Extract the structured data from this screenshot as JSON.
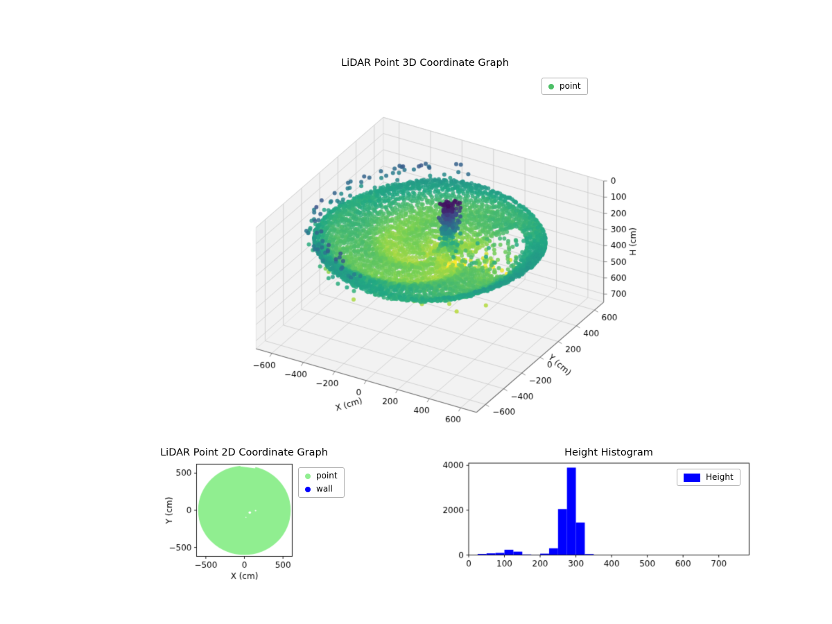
{
  "figure": {
    "background": "#ffffff",
    "colors": {
      "pane": "#f2f2f2",
      "pane_edge": "#dedede",
      "grid": "#c9c9c9",
      "axis_line": "#6f6f6f",
      "tick_text": "#000000",
      "spine": "#000000"
    },
    "viridis": [
      "#440154",
      "#414487",
      "#2a788e",
      "#22a884",
      "#7ad151",
      "#fde725"
    ]
  },
  "chart_data": [
    {
      "id": "lidar-3d",
      "type": "scatter3d",
      "title": "LiDAR Point 3D Coordinate Graph",
      "xlabel": "X (cm)",
      "ylabel": "Y (cm)",
      "zlabel": "H (cm)",
      "xlim": [
        -700,
        700
      ],
      "ylim": [
        -700,
        700
      ],
      "hlim": [
        0,
        750
      ],
      "h_axis_inverted": true,
      "x_ticks": [
        -600,
        -400,
        -200,
        0,
        200,
        400,
        600
      ],
      "y_ticks": [
        -600,
        -400,
        -200,
        0,
        200,
        400,
        600
      ],
      "h_ticks": [
        0,
        100,
        200,
        300,
        400,
        500,
        600,
        700
      ],
      "view": {
        "elev": 30,
        "azim": -60
      },
      "colormap": "viridis",
      "color_vmin": 0,
      "color_vmax": 390,
      "marker_size_px": 3,
      "legend": [
        {
          "label": "point",
          "color": "#4cbf66",
          "marker": "circle"
        }
      ],
      "point_cloud": {
        "description": "LiDAR scan: circular floor disc colored by height (yellow center ~330cm fading to teal rim ~225cm), central wall spike rising to H=0 (purple), occlusion gap to its right with scattered debris, sparse wall returns above the far rim",
        "disc": {
          "r_min": 36,
          "r_max": 640,
          "ring_step": 20,
          "arc_step": 17,
          "dense_r": 580,
          "arc_step_dense": 10,
          "h_center": 330,
          "h_edge": 225,
          "wave_amp": 16,
          "noise": 10
        },
        "gap": {
          "theta": [
            -8,
            52
          ],
          "r": [
            110,
            520
          ],
          "keep": 0.15
        },
        "spike": {
          "x": [
            25,
            125
          ],
          "y": [
            35,
            135
          ],
          "h": [
            10,
            430
          ],
          "count": 220
        },
        "knot": {
          "x": [
            40,
            95
          ],
          "y": [
            50,
            110
          ],
          "h": [
            20,
            210
          ],
          "count": 80
        },
        "debris": {
          "x": [
            110,
            430
          ],
          "y": [
            -80,
            280
          ],
          "h": [
            230,
            420
          ],
          "count": 90
        },
        "rim_scatter": {
          "r": [
            600,
            680
          ],
          "theta": [
            95,
            265
          ],
          "h": [
            100,
            250
          ],
          "count": 120
        },
        "under_scatter": {
          "r": [
            250,
            620
          ],
          "theta": [
            -150,
            -20
          ],
          "h": [
            300,
            350
          ],
          "count": 30
        }
      }
    },
    {
      "id": "lidar-2d",
      "type": "scatter",
      "title": "LiDAR Point 2D Coordinate Graph",
      "xlabel": "X (cm)",
      "ylabel": "Y (cm)",
      "xlim": [
        -620,
        620
      ],
      "ylim": [
        -620,
        620
      ],
      "x_ticks": [
        -500,
        0,
        500
      ],
      "y_ticks": [
        -500,
        0,
        500
      ],
      "legend": [
        {
          "label": "point",
          "color": "#90ee90",
          "marker": "circle"
        },
        {
          "label": "wall",
          "color": "#0000ff",
          "marker": "circle"
        }
      ],
      "disc": {
        "center": [
          0,
          0
        ],
        "radius": 600,
        "color": "#90ee90"
      },
      "notches": [
        [
          [
            -60,
            650
          ],
          [
            150,
            650
          ],
          [
            140,
            565
          ],
          [
            -52,
            590
          ]
        ]
      ],
      "holes": [
        [
          70,
          -30,
          16
        ],
        [
          145,
          -5,
          10
        ],
        [
          20,
          -95,
          7
        ]
      ]
    },
    {
      "id": "height-histogram",
      "type": "bar",
      "title": "Height Histogram",
      "bar_color": "#0000ff",
      "legend": [
        {
          "label": "Height",
          "color": "#0000ff",
          "marker": "rect"
        }
      ],
      "bin_start": 25,
      "bin_width": 25,
      "values": [
        45,
        75,
        95,
        235,
        150,
        25,
        15,
        60,
        300,
        2050,
        3900,
        1450,
        40,
        0,
        0,
        0,
        0,
        0,
        0,
        0,
        0,
        0,
        0,
        0,
        0,
        0,
        0,
        0,
        0,
        0
      ],
      "xlim": [
        0,
        785
      ],
      "ylim": [
        0,
        4100
      ],
      "x_ticks": [
        0,
        100,
        200,
        300,
        400,
        500,
        600,
        700
      ],
      "y_ticks": [
        0,
        2000,
        4000
      ]
    }
  ]
}
